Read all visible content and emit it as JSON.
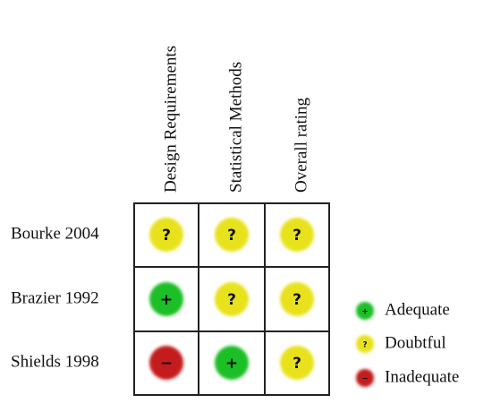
{
  "columns": [
    "Design Requirements",
    "Statistical Methods",
    "Overall rating"
  ],
  "rows": [
    {
      "label": "Bourke 2004",
      "cells": [
        "?",
        "?",
        "?"
      ]
    },
    {
      "label": "Brazier 1992",
      "cells": [
        "+",
        "?",
        "?"
      ]
    },
    {
      "label": "Shields 1998",
      "cells": [
        "−",
        "+",
        "?"
      ]
    }
  ],
  "legend": [
    {
      "symbol": "+",
      "label": "Adequate",
      "color": "#1fbf28"
    },
    {
      "symbol": "?",
      "label": "Doubtful",
      "color": "#e8e21e"
    },
    {
      "symbol": "−",
      "label": "Inadequate",
      "color": "#c41a1a"
    }
  ]
}
